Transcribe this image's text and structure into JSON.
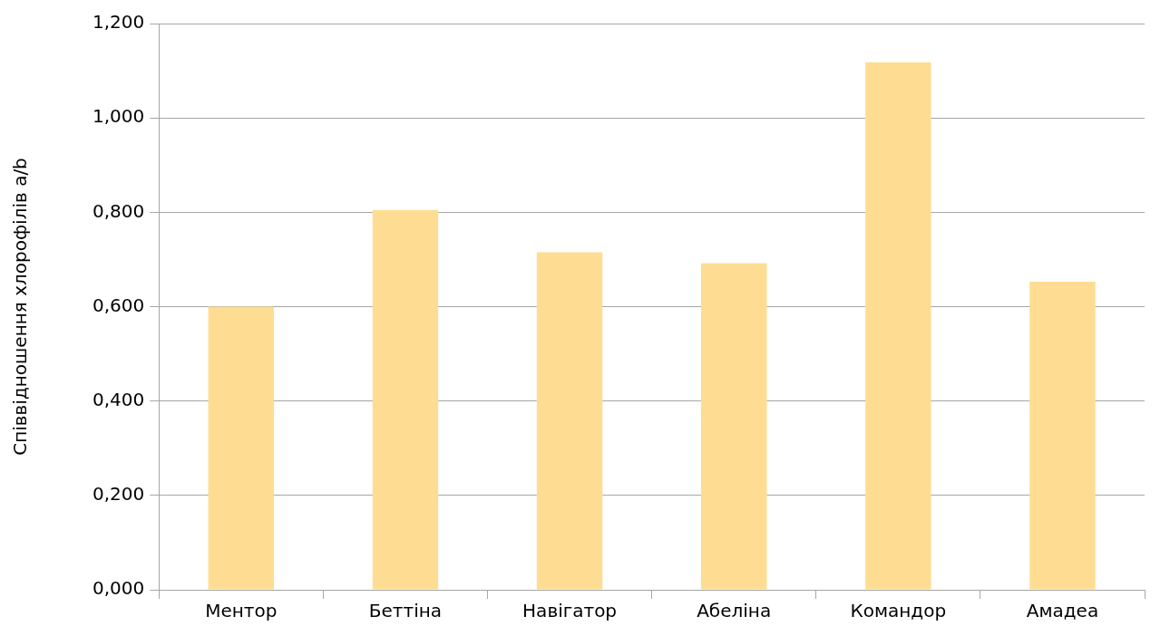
{
  "chart_data": {
    "type": "bar",
    "ylabel": "Співвідношення хлорофілів a/b",
    "categories": [
      "Ментор",
      "Беттіна",
      "Навігатор",
      "Абеліна",
      "Командор",
      "Амадеа"
    ],
    "values": [
      0.6,
      0.805,
      0.715,
      0.692,
      1.118,
      0.653
    ],
    "color": "#fedd92",
    "ylim": [
      0,
      1.2
    ],
    "yticks": [
      {
        "value": 0,
        "label": "0,000"
      },
      {
        "value": 0.2,
        "label": "0,200"
      },
      {
        "value": 0.4,
        "label": "0,400"
      },
      {
        "value": 0.6,
        "label": "0,600"
      },
      {
        "value": 0.8,
        "label": "0,800"
      },
      {
        "value": 1,
        "label": "1,000"
      },
      {
        "value": 1.2,
        "label": "1,200"
      }
    ],
    "grid": "y"
  }
}
